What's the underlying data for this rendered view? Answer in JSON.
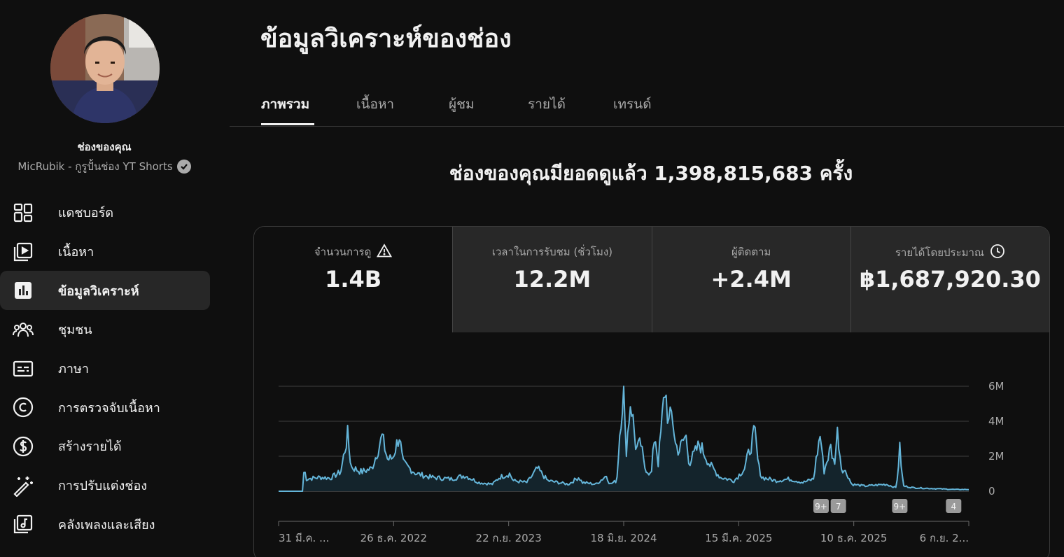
{
  "sidebar": {
    "channel_label": "ช่องของคุณ",
    "channel_name": "MicRubik - กูรูปั้นช่อง YT Shorts",
    "items": [
      {
        "label": "แดชบอร์ด",
        "icon": "dashboard-icon"
      },
      {
        "label": "เนื้อหา",
        "icon": "content-icon"
      },
      {
        "label": "ข้อมูลวิเคราะห์",
        "icon": "analytics-icon",
        "active": true
      },
      {
        "label": "ชุมชน",
        "icon": "community-icon"
      },
      {
        "label": "ภาษา",
        "icon": "subtitles-icon"
      },
      {
        "label": "การตรวจจับเนื้อหา",
        "icon": "copyright-icon"
      },
      {
        "label": "สร้างรายได้",
        "icon": "monetization-icon"
      },
      {
        "label": "การปรับแต่งช่อง",
        "icon": "customization-icon"
      },
      {
        "label": "คลังเพลงและเสียง",
        "icon": "audio-library-icon"
      }
    ]
  },
  "main": {
    "title": "ข้อมูลวิเคราะห์ของช่อง",
    "tabs": [
      "ภาพรวม",
      "เนื้อหา",
      "ผู้ชม",
      "รายได้",
      "เทรนด์"
    ],
    "headline": "ช่องของคุณมียอดดูแล้ว 1,398,815,683 ครั้ง",
    "metrics": [
      {
        "label": "จำนวนการดู",
        "value": "1.4B",
        "icon": "warning-icon"
      },
      {
        "label": "เวลาในการรับชม (ชั่วโมง)",
        "value": "12.2M"
      },
      {
        "label": "ผู้ติดตาม",
        "value": "+2.4M"
      },
      {
        "label": "รายได้โดยประมาณ",
        "value": "฿1,687,920.30",
        "icon": "clock-icon"
      }
    ]
  },
  "colors": {
    "background": "#0f0f0f",
    "line": "#64b5d9",
    "fill": "#14242c",
    "grid": "#3f3f3f",
    "card_inactive": "#282828"
  },
  "chart_data": {
    "type": "area",
    "ylabels": [
      "6M",
      "4M",
      "2M",
      "0"
    ],
    "ylim": [
      0,
      6000000
    ],
    "xlabels": [
      "31 มี.ค. ...",
      "26 ธ.ค. 2022",
      "22 ก.ย. 2023",
      "18 มิ.ย. 2024",
      "15 มี.ค. 2025",
      "10 ธ.ค. 2025",
      "6 ก.ย. 2..."
    ],
    "markers": [
      {
        "label": "9+",
        "x_fraction": 0.786
      },
      {
        "label": "7",
        "x_fraction": 0.811
      },
      {
        "label": "9+",
        "x_fraction": 0.9
      },
      {
        "label": "4",
        "x_fraction": 0.978
      }
    ],
    "grid": true,
    "series": [
      {
        "name": "",
        "anchors": [
          [
            0.0,
            0
          ],
          [
            0.035,
            0
          ],
          [
            0.037,
            1400000
          ],
          [
            0.04,
            700000
          ],
          [
            0.06,
            800000
          ],
          [
            0.075,
            750000
          ],
          [
            0.09,
            1100000
          ],
          [
            0.1,
            3200000
          ],
          [
            0.105,
            1400000
          ],
          [
            0.12,
            1100000
          ],
          [
            0.135,
            1300000
          ],
          [
            0.15,
            3100000
          ],
          [
            0.158,
            1800000
          ],
          [
            0.165,
            1900000
          ],
          [
            0.175,
            3200000
          ],
          [
            0.18,
            1600000
          ],
          [
            0.2,
            1000000
          ],
          [
            0.22,
            800000
          ],
          [
            0.25,
            700000
          ],
          [
            0.27,
            900000
          ],
          [
            0.29,
            500000
          ],
          [
            0.31,
            400000
          ],
          [
            0.32,
            800000
          ],
          [
            0.335,
            1000000
          ],
          [
            0.34,
            600000
          ],
          [
            0.36,
            500000
          ],
          [
            0.375,
            1300000
          ],
          [
            0.39,
            600000
          ],
          [
            0.42,
            400000
          ],
          [
            0.435,
            800000
          ],
          [
            0.44,
            500000
          ],
          [
            0.46,
            400000
          ],
          [
            0.475,
            900000
          ],
          [
            0.48,
            400000
          ],
          [
            0.49,
            600000
          ],
          [
            0.495,
            3800000
          ],
          [
            0.5,
            6000000
          ],
          [
            0.503,
            2000000
          ],
          [
            0.51,
            5300000
          ],
          [
            0.518,
            2400000
          ],
          [
            0.525,
            2700000
          ],
          [
            0.53,
            1400000
          ],
          [
            0.54,
            900000
          ],
          [
            0.545,
            3400000
          ],
          [
            0.55,
            1600000
          ],
          [
            0.56,
            6000000
          ],
          [
            0.565,
            3800000
          ],
          [
            0.57,
            4500000
          ],
          [
            0.575,
            2700000
          ],
          [
            0.58,
            2300000
          ],
          [
            0.59,
            3200000
          ],
          [
            0.595,
            1600000
          ],
          [
            0.61,
            2700000
          ],
          [
            0.625,
            1500000
          ],
          [
            0.64,
            800000
          ],
          [
            0.66,
            600000
          ],
          [
            0.675,
            1300000
          ],
          [
            0.69,
            3400000
          ],
          [
            0.695,
            1500000
          ],
          [
            0.7,
            800000
          ],
          [
            0.72,
            600000
          ],
          [
            0.74,
            700000
          ],
          [
            0.76,
            500000
          ],
          [
            0.775,
            700000
          ],
          [
            0.78,
            2100000
          ],
          [
            0.785,
            3300000
          ],
          [
            0.79,
            1100000
          ],
          [
            0.8,
            2500000
          ],
          [
            0.805,
            1500000
          ],
          [
            0.81,
            3500000
          ],
          [
            0.815,
            1400000
          ],
          [
            0.825,
            900000
          ],
          [
            0.83,
            400000
          ],
          [
            0.85,
            300000
          ],
          [
            0.88,
            400000
          ],
          [
            0.895,
            200000
          ],
          [
            0.9,
            2400000
          ],
          [
            0.905,
            300000
          ],
          [
            0.92,
            200000
          ],
          [
            0.95,
            150000
          ],
          [
            0.98,
            100000
          ],
          [
            1.0,
            100000
          ]
        ]
      }
    ]
  }
}
